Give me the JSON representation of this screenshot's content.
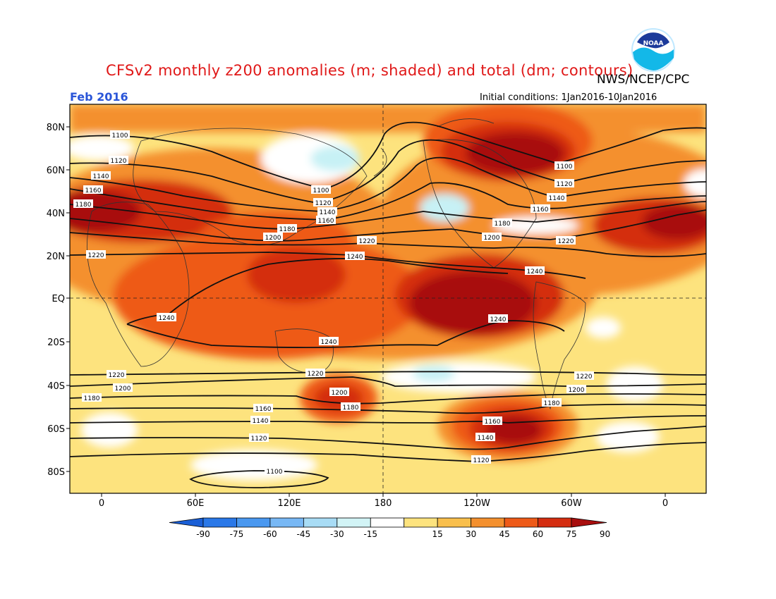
{
  "header": {
    "title": "CFSv2 monthly z200 anomalies (m; shaded) and total (dm; contours)",
    "source": "NWS/NCEP/CPC",
    "valid_month": "Feb 2016",
    "initial_conditions": "Initial conditions: 1Jan2016-10Jan2016",
    "logo_text": "NOAA"
  },
  "map": {
    "lat_labels": [
      "80N",
      "60N",
      "40N",
      "20N",
      "EQ",
      "20S",
      "40S",
      "60S",
      "80S"
    ],
    "lon_labels": [
      "0",
      "60E",
      "120E",
      "180",
      "120W",
      "60W",
      "0"
    ],
    "contour_labels": [
      {
        "text": "1100"
      },
      {
        "text": "1120"
      },
      {
        "text": "1140"
      },
      {
        "text": "1160"
      },
      {
        "text": "1180"
      },
      {
        "text": "1200"
      },
      {
        "text": "1220"
      },
      {
        "text": "1240"
      },
      {
        "text": "1100"
      },
      {
        "text": "1120"
      },
      {
        "text": "1140"
      },
      {
        "text": "1160"
      },
      {
        "text": "1180"
      },
      {
        "text": "1200"
      },
      {
        "text": "1220"
      },
      {
        "text": "1240"
      },
      {
        "text": "1100"
      },
      {
        "text": "1120"
      },
      {
        "text": "1140"
      },
      {
        "text": "1160"
      },
      {
        "text": "1180"
      },
      {
        "text": "1200"
      },
      {
        "text": "1220"
      },
      {
        "text": "1240"
      },
      {
        "text": "1240"
      },
      {
        "text": "1240"
      },
      {
        "text": "1220"
      },
      {
        "text": "1200"
      },
      {
        "text": "1180"
      },
      {
        "text": "1160"
      },
      {
        "text": "1140"
      },
      {
        "text": "1120"
      },
      {
        "text": "1100"
      },
      {
        "text": "1220"
      },
      {
        "text": "1200"
      },
      {
        "text": "1180"
      },
      {
        "text": "1160"
      },
      {
        "text": "1140"
      },
      {
        "text": "1120"
      },
      {
        "text": "1220"
      },
      {
        "text": "1200"
      },
      {
        "text": "1180"
      },
      {
        "text": "1160"
      },
      {
        "text": "1140"
      },
      {
        "text": "1120"
      }
    ]
  },
  "colorbar": {
    "tick_labels": [
      "-90",
      "-75",
      "-60",
      "-45",
      "-30",
      "-15",
      "15",
      "30",
      "45",
      "60",
      "75",
      "90"
    ],
    "colors": [
      "#1a5fd6",
      "#2a78e8",
      "#4a98f0",
      "#78b8f5",
      "#a8dcf5",
      "#d2f4f6",
      "#ffffff",
      "#fde37e",
      "#f9bf4c",
      "#f4902e",
      "#ee5a18",
      "#d42d10",
      "#a80e0e"
    ]
  },
  "anomaly_colors": {
    "white": "#ffffff",
    "light_cyan": "#c7f1f5",
    "light_yellow": "#fde37e",
    "yellow_orange": "#f9bf4c",
    "orange": "#f4902e",
    "red_orange": "#ee5a18",
    "red": "#d42d10",
    "dark_red": "#a80e0e"
  }
}
